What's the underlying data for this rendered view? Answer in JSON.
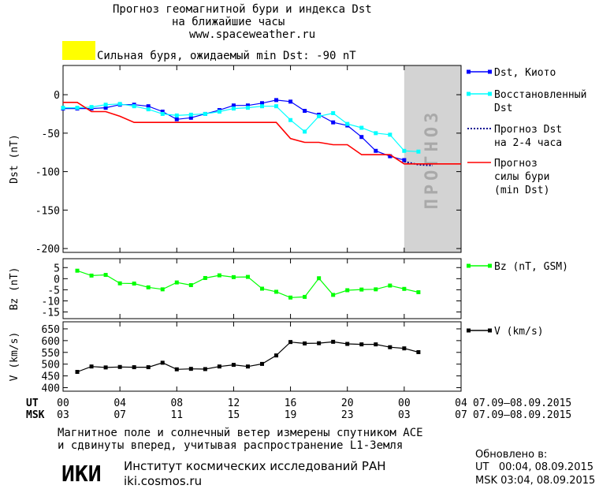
{
  "header": {
    "title_line1": "Прогноз геомагнитной бури и индекса Dst",
    "title_line2": "на ближайшие часы",
    "site": "www.spaceweather.ru",
    "storm_label": "Сильная буря, ожидаемый min Dst: -90 nT",
    "storm_color": "#ffff00"
  },
  "chart_data": [
    {
      "type": "line",
      "ylabel": "Dst (nT)",
      "ylim": [
        -205,
        38
      ],
      "yticks": [
        0,
        -50,
        -100,
        -150,
        -200
      ],
      "xlim": [
        0,
        28
      ],
      "forecast_region": {
        "x": [
          24,
          28
        ],
        "label": "ПРОГНОЗ",
        "color": "#d3d3d3"
      },
      "series": [
        {
          "name": "Dst, Киото",
          "color": "#0000ff",
          "marker": "square",
          "x": [
            0,
            1,
            2,
            3,
            4,
            5,
            6,
            7,
            8,
            9,
            10,
            11,
            12,
            13,
            14,
            15,
            16,
            17,
            18,
            19,
            20,
            21,
            22,
            23,
            24
          ],
          "y": [
            -18,
            -18,
            -18,
            -17,
            -13,
            -13,
            -15,
            -22,
            -32,
            -30,
            -25,
            -20,
            -14,
            -14,
            -11,
            -7,
            -9,
            -21,
            -26,
            -36,
            -40,
            -55,
            -73,
            -80,
            -85
          ]
        },
        {
          "name": "Восстановленный Dst",
          "color": "#00ffff",
          "marker": "square",
          "x": [
            0,
            1,
            2,
            3,
            4,
            5,
            6,
            7,
            8,
            9,
            10,
            11,
            12,
            13,
            14,
            15,
            16,
            17,
            18,
            19,
            20,
            21,
            22,
            23,
            24,
            25
          ],
          "y": [
            -17,
            -17,
            -16,
            -13,
            -12,
            -15,
            -19,
            -25,
            -27,
            -26,
            -25,
            -22,
            -18,
            -17,
            -15,
            -15,
            -33,
            -48,
            -28,
            -24,
            -38,
            -43,
            -50,
            -52,
            -73,
            -74
          ]
        },
        {
          "name": "Прогноз Dst на 2-4 часа",
          "color": "#000090",
          "dashed": true,
          "x": [
            24,
            25,
            26
          ],
          "y": [
            -87,
            -91,
            -92
          ]
        },
        {
          "name": "Прогноз силы бури (min Dst)",
          "color": "#ff0000",
          "x": [
            0,
            1,
            2,
            3,
            4,
            5,
            6,
            7,
            8,
            9,
            10,
            11,
            12,
            13,
            14,
            15,
            16,
            17,
            18,
            19,
            20,
            21,
            22,
            23,
            24,
            25,
            26,
            27,
            28
          ],
          "y": [
            -10,
            -10,
            -22,
            -22,
            -28,
            -36,
            -36,
            -36,
            -36,
            -36,
            -36,
            -36,
            -36,
            -36,
            -36,
            -36,
            -57,
            -62,
            -62,
            -65,
            -65,
            -78,
            -78,
            -78,
            -90,
            -90,
            -90,
            -90,
            -90
          ]
        }
      ]
    },
    {
      "type": "line",
      "ylabel": "Bz (nT)",
      "ylim": [
        -18,
        9
      ],
      "yticks": [
        5,
        0,
        -5,
        -10,
        -15
      ],
      "xlim": [
        0,
        28
      ],
      "series": [
        {
          "name": "Bz (nT, GSM)",
          "color": "#00ff00",
          "marker": "square",
          "x": [
            1,
            2,
            3,
            4,
            5,
            6,
            7,
            8,
            9,
            10,
            11,
            12,
            13,
            14,
            15,
            16,
            17,
            18,
            19,
            20,
            21,
            22,
            23,
            24,
            25
          ],
          "y": [
            3.6,
            1.4,
            1.7,
            -2.1,
            -2.2,
            -3.9,
            -4.8,
            -1.7,
            -2.9,
            0.3,
            1.5,
            0.7,
            0.8,
            -4.5,
            -5.9,
            -8.5,
            -8.2,
            0.2,
            -7.3,
            -5.2,
            -4.9,
            -4.8,
            -3.1,
            -4.6,
            -6.1
          ]
        }
      ]
    },
    {
      "type": "line",
      "ylabel": "V (km/s)",
      "ylim": [
        385,
        680
      ],
      "yticks": [
        650,
        600,
        550,
        500,
        450,
        400
      ],
      "xlim": [
        0,
        28
      ],
      "series": [
        {
          "name": "V (km/s)",
          "color": "#000000",
          "marker": "square",
          "x": [
            1,
            2,
            3,
            4,
            5,
            6,
            7,
            8,
            9,
            10,
            11,
            12,
            13,
            14,
            15,
            16,
            17,
            18,
            19,
            20,
            21,
            22,
            23,
            24,
            25
          ],
          "y": [
            467,
            490,
            486,
            488,
            487,
            487,
            506,
            478,
            480,
            479,
            490,
            497,
            490,
            501,
            537,
            594,
            588,
            589,
            595,
            586,
            584,
            584,
            572,
            567,
            551
          ]
        }
      ]
    }
  ],
  "axis": {
    "ut_label": "UT",
    "msk_label": "MSK",
    "ut_ticks": [
      "00",
      "04",
      "08",
      "12",
      "16",
      "20",
      "00",
      "04"
    ],
    "msk_ticks": [
      "03",
      "07",
      "11",
      "15",
      "19",
      "23",
      "03",
      "07"
    ],
    "date_range_ut": "07.09–08.09.2015",
    "date_range_msk": "07.09–08.09.2015"
  },
  "footer": {
    "note_line1": "Магнитное поле и солнечный ветер измерены спутником ACE",
    "note_line2": "и сдвинуты вперед, учитывая распространение L1-Земля",
    "institute": "Институт космических исследований РАН",
    "institute_site": "iki.cosmos.ru",
    "logo_text": "ИКИ",
    "updated_label": "Обновлено в:",
    "updated_ut": "UT   00:04, 08.09.2015",
    "updated_msk": "MSK 03:04, 08.09.2015"
  }
}
